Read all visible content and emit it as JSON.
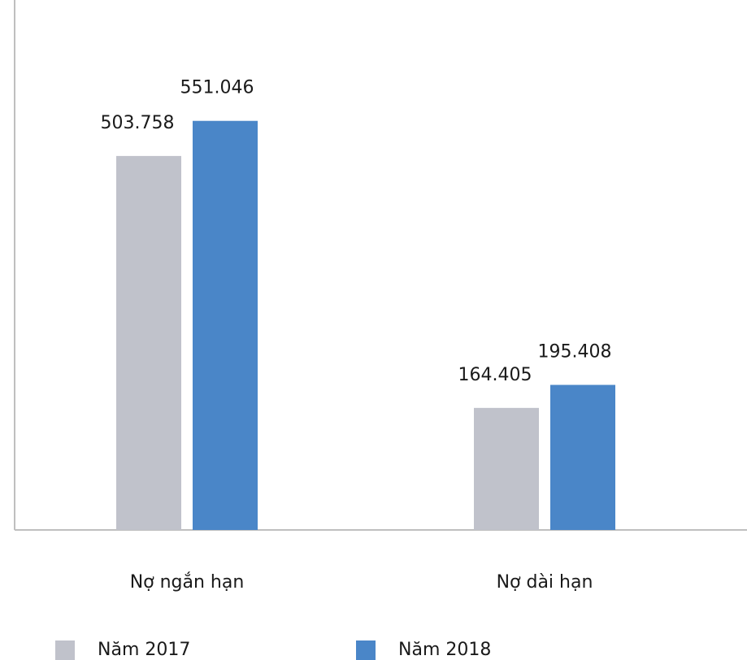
{
  "chart_data": {
    "type": "bar",
    "categories": [
      "Nợ ngắn hạn",
      "Nợ dài hạn"
    ],
    "series": [
      {
        "name": "Năm 2017",
        "color": "#c0c2cb",
        "values": [
          503758,
          164405
        ],
        "value_labels": [
          "503.758",
          "164.405"
        ]
      },
      {
        "name": "Năm 2018",
        "color": "#4a86c8",
        "values": [
          551046,
          195408
        ],
        "value_labels": [
          "551.046",
          "195.408"
        ]
      }
    ],
    "ylim": [
      0,
      600000
    ]
  }
}
